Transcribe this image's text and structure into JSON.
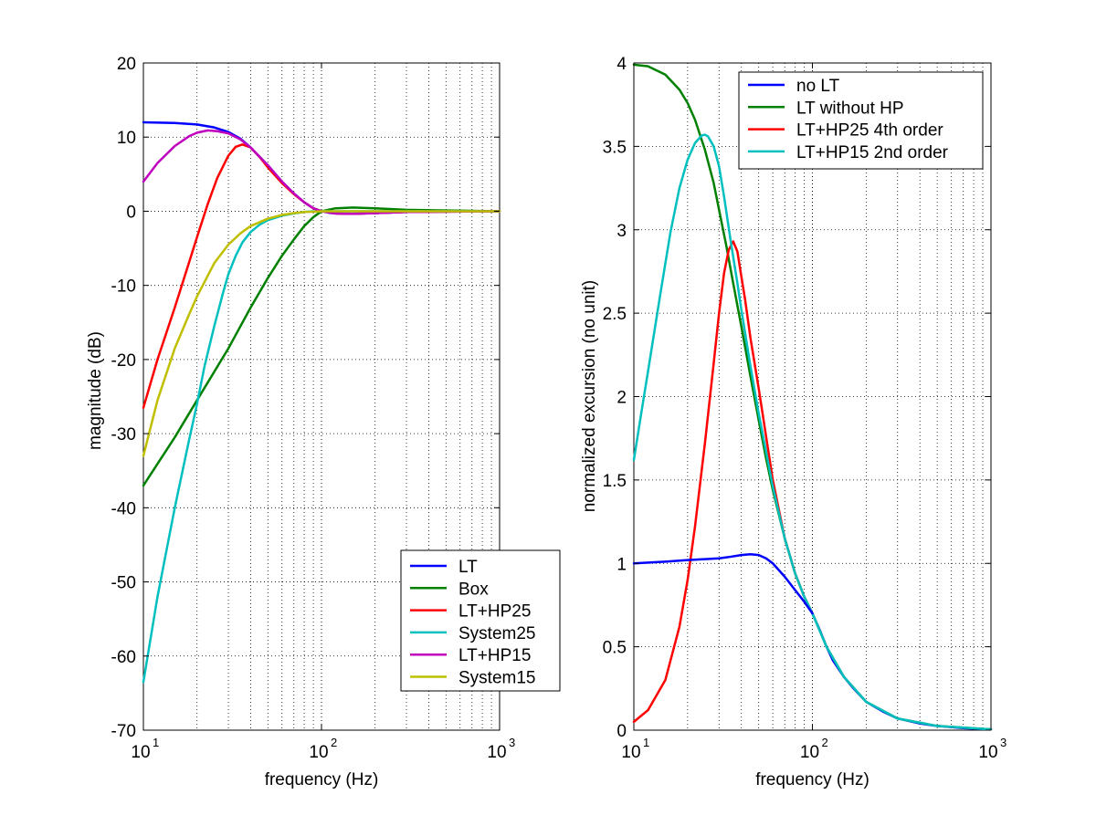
{
  "chart_data": [
    {
      "type": "line",
      "xscale": "log",
      "xlim": [
        10,
        1000
      ],
      "ylim": [
        -70,
        20
      ],
      "xlabel": "frequency (Hz)",
      "ylabel": "magnitude (dB)",
      "grid": true,
      "legend_position": "bottom-right",
      "x_ticks": [
        {
          "value": 10,
          "base": "10",
          "exp": "1"
        },
        {
          "value": 100,
          "base": "10",
          "exp": "2"
        },
        {
          "value": 1000,
          "base": "10",
          "exp": "3"
        }
      ],
      "y_ticks": [
        20,
        10,
        0,
        -10,
        -20,
        -30,
        -40,
        -50,
        -60,
        -70
      ],
      "y_tick_labels": [
        "20",
        "10",
        "0",
        "-10",
        "-20",
        "-30",
        "-40",
        "-50",
        "-60",
        "-70"
      ],
      "series": [
        {
          "name": "LT",
          "color": "#0000ff",
          "x": [
            10,
            15,
            20,
            25,
            30,
            35,
            40,
            50,
            60,
            70,
            80,
            90,
            100,
            110,
            120,
            150,
            200,
            300,
            500,
            1000
          ],
          "y": [
            12,
            11.9,
            11.7,
            11.3,
            10.7,
            9.8,
            8.6,
            6.2,
            4.0,
            2.4,
            1.2,
            0.4,
            0,
            -0.2,
            -0.3,
            -0.35,
            -0.25,
            -0.1,
            -0.05,
            0
          ]
        },
        {
          "name": "Box",
          "color": "#008000",
          "x": [
            10,
            15,
            20,
            30,
            40,
            50,
            60,
            70,
            80,
            90,
            100,
            120,
            150,
            200,
            300,
            500,
            1000
          ],
          "y": [
            -37,
            -30.5,
            -25.5,
            -18.5,
            -13,
            -9,
            -6,
            -3.8,
            -2,
            -0.8,
            0,
            0.4,
            0.5,
            0.4,
            0.2,
            0.1,
            0
          ]
        },
        {
          "name": "LT+HP25",
          "color": "#ff0000",
          "x": [
            10,
            12,
            15,
            18,
            20,
            23,
            26,
            30,
            33,
            36,
            40,
            45,
            50,
            60,
            70,
            80,
            90,
            100,
            120,
            150,
            200,
            300,
            500,
            1000
          ],
          "y": [
            -26.5,
            -20,
            -13,
            -7,
            -3.5,
            1,
            4.5,
            7.5,
            8.7,
            9.0,
            8.6,
            7.3,
            5.9,
            3.8,
            2.3,
            1.2,
            0.4,
            0,
            -0.3,
            -0.35,
            -0.25,
            -0.1,
            -0.05,
            0
          ]
        },
        {
          "name": "System25",
          "color": "#00bfbf",
          "x": [
            10,
            12,
            15,
            18,
            20,
            22,
            25,
            28,
            30,
            33,
            36,
            40,
            45,
            50,
            60,
            70,
            80,
            90,
            100,
            120,
            150,
            200,
            300,
            1000
          ],
          "y": [
            -63.5,
            -52,
            -40,
            -31,
            -26,
            -21,
            -15.5,
            -11,
            -8.5,
            -6,
            -4.2,
            -2.8,
            -1.8,
            -1.2,
            -0.6,
            -0.3,
            -0.1,
            0,
            0,
            0,
            0,
            0,
            0,
            0
          ]
        },
        {
          "name": "LT+HP15",
          "color": "#bf00bf",
          "x": [
            10,
            12,
            15,
            18,
            20,
            23,
            26,
            30,
            35,
            40,
            50,
            60,
            70,
            80,
            90,
            100,
            120,
            150,
            200,
            300,
            500,
            1000
          ],
          "y": [
            4,
            6.5,
            8.8,
            10.1,
            10.6,
            10.9,
            10.8,
            10.5,
            9.7,
            8.6,
            6.2,
            4.0,
            2.4,
            1.2,
            0.4,
            0,
            -0.3,
            -0.35,
            -0.25,
            -0.1,
            -0.05,
            0
          ]
        },
        {
          "name": "System15",
          "color": "#bfbf00",
          "x": [
            10,
            12,
            15,
            18,
            20,
            25,
            30,
            35,
            40,
            50,
            60,
            70,
            80,
            90,
            100,
            120,
            150,
            200,
            300,
            1000
          ],
          "y": [
            -33,
            -25.5,
            -18.5,
            -14,
            -11.5,
            -7,
            -4.5,
            -3,
            -2,
            -1,
            -0.5,
            -0.25,
            -0.1,
            -0.05,
            0,
            0,
            0,
            0,
            0,
            0
          ]
        }
      ]
    },
    {
      "type": "line",
      "xscale": "log",
      "xlim": [
        10,
        1000
      ],
      "ylim": [
        0,
        4
      ],
      "xlabel": "frequency (Hz)",
      "ylabel": "normalized excursion (no unit)",
      "grid": true,
      "legend_position": "top-right",
      "x_ticks": [
        {
          "value": 10,
          "base": "10",
          "exp": "1"
        },
        {
          "value": 100,
          "base": "10",
          "exp": "2"
        },
        {
          "value": 1000,
          "base": "10",
          "exp": "3"
        }
      ],
      "y_ticks": [
        4,
        3.5,
        3,
        2.5,
        2,
        1.5,
        1,
        0.5,
        0
      ],
      "y_tick_labels": [
        "4",
        "3.5",
        "3",
        "2.5",
        "2",
        "1.5",
        "1",
        "0.5",
        "0"
      ],
      "series": [
        {
          "name": "no LT",
          "color": "#0000ff",
          "x": [
            100,
            110,
            120,
            130,
            150,
            170,
            200,
            250,
            300,
            400,
            500,
            700,
            1000
          ],
          "y": [
            0.7,
            0.6,
            0.5,
            0.42,
            0.32,
            0.25,
            0.17,
            0.11,
            0.07,
            0.04,
            0.025,
            0.012,
            0.005
          ]
        },
        {
          "name": "LT without HP",
          "color": "#008000",
          "x": [
            10,
            12,
            15,
            18,
            20,
            22,
            25,
            28,
            30,
            33,
            36,
            40,
            45,
            50,
            55,
            60,
            70,
            80,
            90,
            100,
            120,
            150,
            200,
            300,
            500,
            1000
          ],
          "y": [
            3.99,
            3.98,
            3.93,
            3.84,
            3.76,
            3.66,
            3.48,
            3.28,
            3.12,
            2.9,
            2.68,
            2.42,
            2.12,
            1.86,
            1.63,
            1.44,
            1.15,
            0.94,
            0.8,
            0.7,
            0.5,
            0.32,
            0.17,
            0.07,
            0.025,
            0.005
          ]
        },
        {
          "name": "LT+HP25 4th order",
          "color": "#ff0000",
          "x": [
            10,
            12,
            15,
            18,
            20,
            22,
            25,
            28,
            30,
            32,
            34,
            36,
            38,
            40,
            42,
            45,
            50,
            60,
            70,
            80,
            90,
            100
          ],
          "y": [
            0.05,
            0.12,
            0.3,
            0.62,
            0.9,
            1.22,
            1.72,
            2.2,
            2.5,
            2.74,
            2.88,
            2.93,
            2.87,
            2.72,
            2.58,
            2.35,
            2.05,
            1.5,
            1.15,
            0.94,
            0.8,
            0.7
          ]
        },
        {
          "name": "LT+HP15 2nd order",
          "color": "#00bfbf",
          "x": [
            10,
            11,
            12,
            14,
            16,
            18,
            20,
            22,
            24,
            25,
            26,
            28,
            30,
            32,
            35,
            38,
            40,
            45,
            50,
            60,
            70,
            80,
            90,
            100,
            120,
            150,
            200,
            300,
            500,
            1000
          ],
          "y": [
            1.62,
            1.9,
            2.15,
            2.6,
            2.98,
            3.25,
            3.42,
            3.52,
            3.565,
            3.57,
            3.56,
            3.5,
            3.38,
            3.2,
            2.92,
            2.68,
            2.52,
            2.18,
            1.9,
            1.46,
            1.15,
            0.94,
            0.8,
            0.7,
            0.5,
            0.32,
            0.17,
            0.07,
            0.025,
            0.005
          ]
        },
        {
          "name": "",
          "color": "#0000ff",
          "x": [
            10,
            15,
            20,
            25,
            30,
            35,
            40,
            45,
            50,
            55,
            60,
            70,
            80,
            90,
            100
          ],
          "y": [
            1.0,
            1.01,
            1.02,
            1.025,
            1.03,
            1.04,
            1.05,
            1.055,
            1.05,
            1.03,
            1.0,
            0.92,
            0.84,
            0.77,
            0.7
          ]
        }
      ]
    }
  ]
}
